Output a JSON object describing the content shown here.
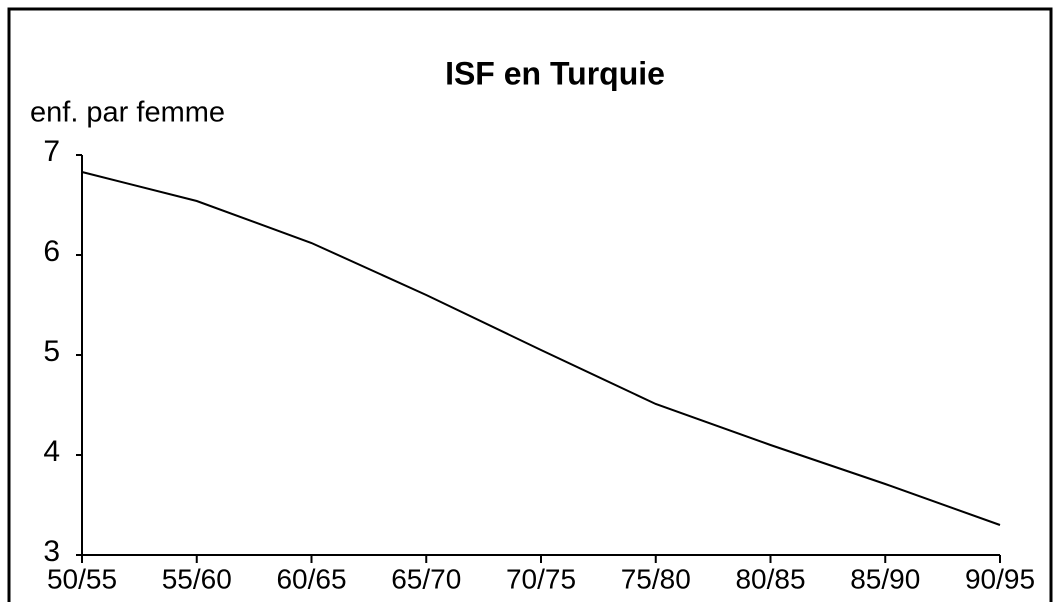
{
  "chart_data": {
    "type": "line",
    "title": "ISF en Turquie",
    "y_label": "enf. par femme",
    "categories": [
      "50/55",
      "55/60",
      "60/65",
      "65/70",
      "70/75",
      "75/80",
      "80/85",
      "85/90",
      "90/95"
    ],
    "series": [
      {
        "name": "ISF",
        "color": "#000000",
        "values": [
          6.83,
          6.54,
          6.12,
          5.6,
          5.05,
          4.51,
          4.1,
          3.71,
          3.3
        ]
      }
    ],
    "ylim": [
      3,
      7
    ],
    "yticks": [
      3,
      4,
      5,
      6,
      7
    ],
    "grid": false
  }
}
